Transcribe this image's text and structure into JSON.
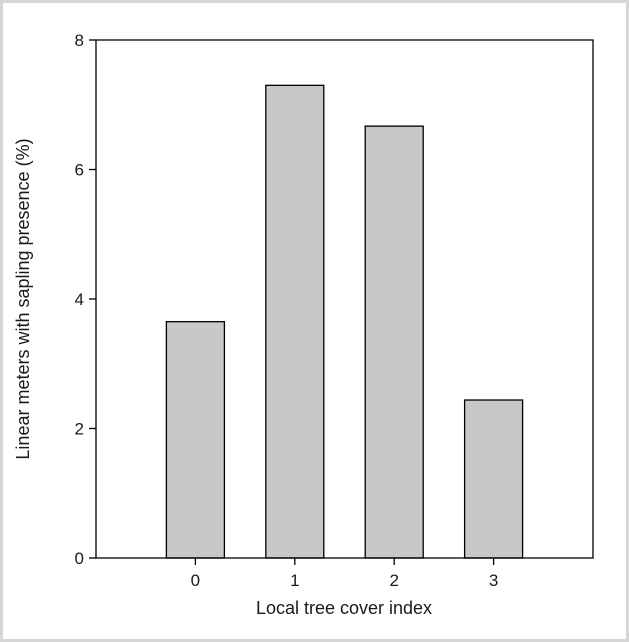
{
  "chart_data": {
    "type": "bar",
    "categories": [
      "0",
      "1",
      "2",
      "3"
    ],
    "values": [
      3.65,
      7.3,
      6.67,
      2.44
    ],
    "title": "",
    "xlabel": "Local tree cover index",
    "ylabel": "Linear meters with sapling presence (%)",
    "ylim": [
      0,
      8
    ],
    "yticks": [
      "0",
      "2",
      "4",
      "6",
      "8"
    ],
    "grid": false,
    "legend": "none",
    "colors": {
      "bar_fill": "#c8c8c8",
      "bar_stroke": "#000000",
      "axis": "#000000"
    }
  }
}
